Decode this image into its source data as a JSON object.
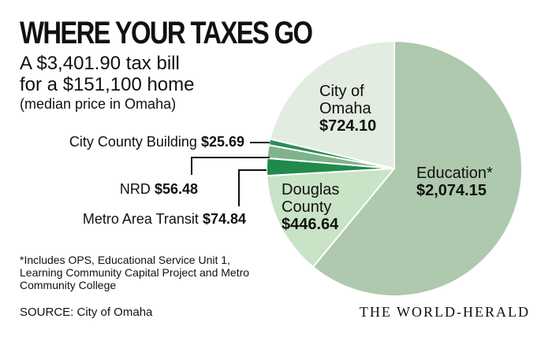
{
  "chart_data": {
    "type": "pie",
    "title": "WHERE YOUR TAXES GO",
    "subtitle_lines": [
      "A $3,401.90 tax bill",
      "for a $151,100 home"
    ],
    "subtitle_note": "(median price in Omaha)",
    "slices": [
      {
        "label": "Education*",
        "display_value": "$2,074.15",
        "value": 2074.15,
        "color": "#aec9ae"
      },
      {
        "label": "Douglas County",
        "label_lines": [
          "Douglas",
          "County"
        ],
        "display_value": "$446.64",
        "value": 446.64,
        "color": "#c9e3c6"
      },
      {
        "label": "Metro Area Transit",
        "display_value": "$74.84",
        "value": 74.84,
        "color": "#1f8a4c"
      },
      {
        "label": "NRD",
        "display_value": "$56.48",
        "value": 56.48,
        "color": "#7fb38a"
      },
      {
        "label": "City County Building",
        "display_value": "$25.69",
        "value": 25.69,
        "color": "#2e8b57"
      },
      {
        "label": "City of Omaha",
        "label_lines": [
          "City of",
          "Omaha"
        ],
        "display_value": "$724.10",
        "value": 724.1,
        "color": "#e3ece1"
      }
    ]
  },
  "footnote": "*Includes OPS, Educational Service Unit 1, Learning Community Capital Project and Metro Community College",
  "source": "SOURCE: City of Omaha",
  "credit": "THE WORLD-HERALD"
}
